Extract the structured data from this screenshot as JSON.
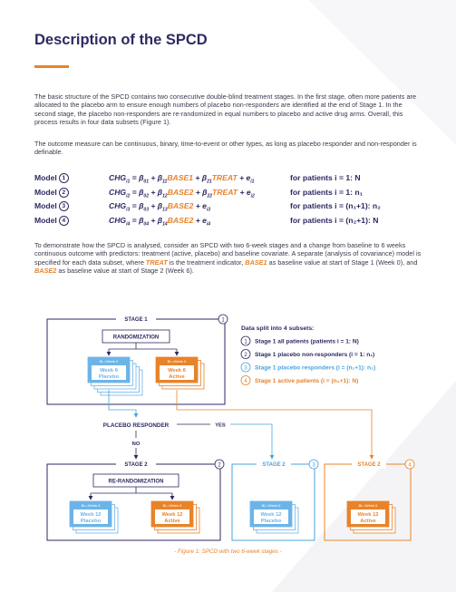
{
  "title": "Description of the SPCD",
  "paragraphs": {
    "p1": "The basic structure of the SPCD contains two consecutive double-blind treatment stages. In the first stage, often more patients are allocated to the placebo arm to ensure enough numbers of placebo non-responders are identified at the end of Stage 1. In the second stage, the placebo non-responders are re-randomized in equal numbers to placebo and active drug arms. Overall, this process results in four data subsets (Figure 1).",
    "p2": "The outcome measure can be continuous, binary, time-to-event or other types, as long as placebo responder and non-responder is definable.",
    "p3_a": "To demonstrate how the SPCD is analysed, consider an SPCD with two 6-week stages and a change from baseline to 6 weeks continuous outcome with predictors: treatment (active, placebo) and baseline covariate. A separate (analysis of covariance) model is specified for each data subset, where ",
    "p3_treat": "TREAT",
    "p3_b": " is the treatment indicator, ",
    "p3_base1": "BASE1",
    "p3_c": " as baseline value at start of Stage 1 (Week 0), and ",
    "p3_base2": "BASE2",
    "p3_d": " as baseline value at start of Stage 2 (Week 6)."
  },
  "models": [
    {
      "label": "Model",
      "num": "1",
      "eq_pre": "CHG",
      "sub": "i1",
      "eq_mid": " = β",
      "sub2": "01",
      "eq_plus": " + β",
      "sub3": "11",
      "var1": "BASE1",
      "eq_plus2": " + β",
      "sub4": "21",
      "var2": "TREAT",
      "eq_e": " + e",
      "sub5": "i1",
      "cond": "for patients i = 1: N"
    },
    {
      "label": "Model",
      "num": "2",
      "eq_pre": "CHG",
      "sub": "i2",
      "eq_mid": " = β",
      "sub2": "02",
      "eq_plus": " + β",
      "sub3": "12",
      "var1": "BASE2",
      "eq_plus2": " + β",
      "sub4": "22",
      "var2": "TREAT",
      "eq_e": " + e",
      "sub5": "i2",
      "cond": "for patients i = 1: n₁"
    },
    {
      "label": "Model",
      "num": "3",
      "eq_pre": "CHG",
      "sub": "i3",
      "eq_mid": " = β",
      "sub2": "03",
      "eq_plus": " + β",
      "sub3": "13",
      "var1": "BASE2",
      "eq_plus2": "",
      "sub4": "",
      "var2": "",
      "eq_e": " + e",
      "sub5": "i3",
      "cond": "for patients i = (n₁+1): n₂"
    },
    {
      "label": "Model",
      "num": "4",
      "eq_pre": "CHG",
      "sub": "i4",
      "eq_mid": " = β",
      "sub2": "04",
      "eq_plus": " + β",
      "sub3": "14",
      "var1": "BASE2",
      "eq_plus2": "",
      "sub4": "",
      "var2": "",
      "eq_e": " + e",
      "sub5": "i4",
      "cond": "for patients i = (n₂+1): N"
    }
  ],
  "diagram": {
    "stage1": "STAGE 1",
    "stage2": "STAGE 2",
    "randomization": "RANDOMIZATION",
    "rerandomization": "RE-RANDOMIZATION",
    "placebo_responder": "PLACEBO RESPONDER",
    "yes": "YES",
    "no": "NO",
    "bl_week0": "BL=Week 0",
    "bl_week6": "BL=Week 6",
    "week6": "Week 6",
    "week12": "Week 12",
    "placebo": "Placebo",
    "active": "Active",
    "legend_title": "Data split into 4 subsets:",
    "legend": [
      {
        "num": "1",
        "text": "Stage 1 all patients (patients i = 1: N)"
      },
      {
        "num": "2",
        "text": "Stage 1 placebo non-responders (i = 1: n₁)"
      },
      {
        "num": "3",
        "text": "Stage 1 placebo responders (i = (n₁+1): n₂)"
      },
      {
        "num": "4",
        "text": "Stage 1 active patients (i = (n₂+1): N)"
      }
    ],
    "caption": "- Figure 1: SPCD with two 6-week stages -",
    "colors": {
      "navy": "#2d2a63",
      "orange": "#e8832a",
      "blue": "#4aa3dd",
      "light_blue": "#6cb4e8"
    }
  }
}
